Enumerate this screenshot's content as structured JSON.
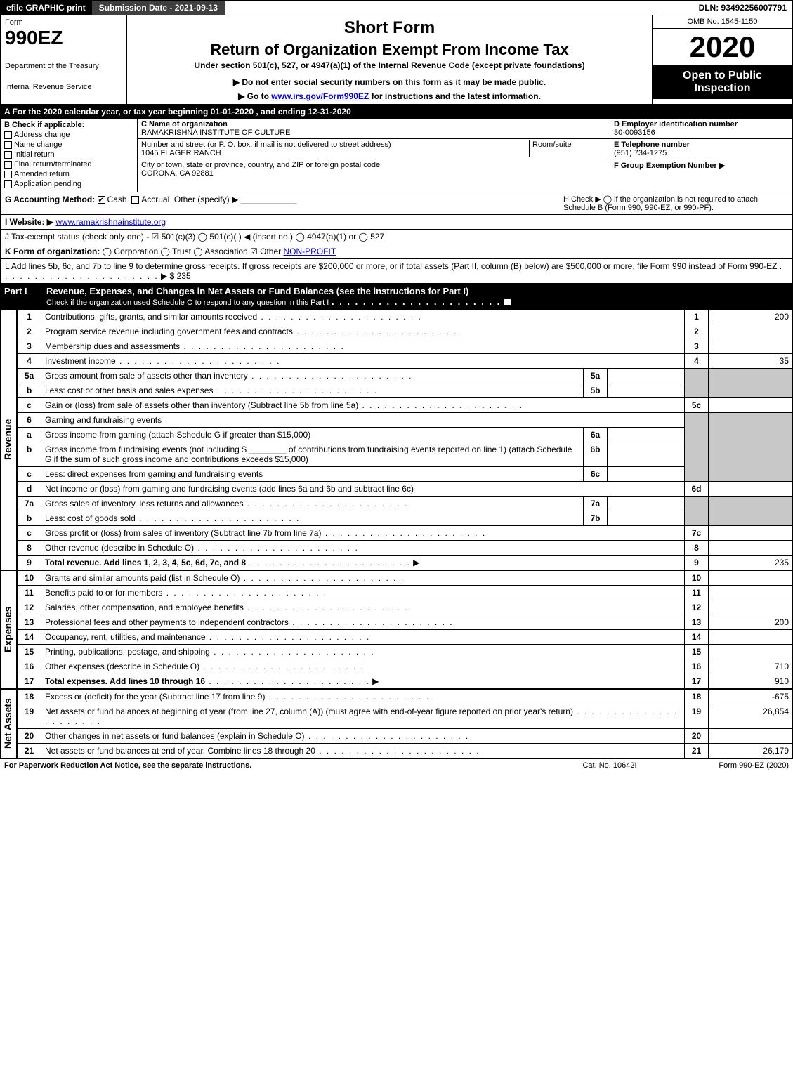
{
  "topbar": {
    "efile": "efile GRAPHIC print",
    "submission": "Submission Date - 2021-09-13",
    "dln": "DLN: 93492256007791"
  },
  "header": {
    "form_label": "Form",
    "form_num": "990EZ",
    "dept": "Department of the Treasury",
    "irs": "Internal Revenue Service",
    "short": "Short Form",
    "title": "Return of Organization Exempt From Income Tax",
    "sub": "Under section 501(c), 527, or 4947(a)(1) of the Internal Revenue Code (except private foundations)",
    "notice": "▶ Do not enter social security numbers on this form as it may be made public.",
    "go_pre": "▶ Go to ",
    "go_link": "www.irs.gov/Form990EZ",
    "go_post": " for instructions and the latest information.",
    "omb": "OMB No. 1545-1150",
    "year": "2020",
    "open": "Open to Public Inspection"
  },
  "tax_year": "A For the 2020 calendar year, or tax year beginning 01-01-2020 , and ending 12-31-2020",
  "box_b": {
    "header": "B Check if applicable:",
    "items": [
      "Address change",
      "Name change",
      "Initial return",
      "Final return/terminated",
      "Amended return",
      "Application pending"
    ]
  },
  "box_c": {
    "name_lab": "C Name of organization",
    "name": "RAMAKRISHNA INSTITUTE OF CULTURE",
    "addr_lab": "Number and street (or P. O. box, if mail is not delivered to street address)",
    "addr": "1045 FLAGER RANCH",
    "room_lab": "Room/suite",
    "city_lab": "City or town, state or province, country, and ZIP or foreign postal code",
    "city": "CORONA, CA  92881"
  },
  "box_d": {
    "ein_lab": "D Employer identification number",
    "ein": "30-0093156",
    "tel_lab": "E Telephone number",
    "tel": "(951) 734-1275",
    "grp_lab": "F Group Exemption Number  ▶"
  },
  "box_g": {
    "label": "G Accounting Method:",
    "cash": "Cash",
    "accrual": "Accrual",
    "other": "Other (specify) ▶"
  },
  "box_h": "H Check ▶ ◯ if the organization is not required to attach Schedule B (Form 990, 990-EZ, or 990-PF).",
  "box_i": {
    "label": "I Website: ▶",
    "link": "www.ramakrishnainstitute.org"
  },
  "box_j": "J Tax-exempt status (check only one) - ☑ 501(c)(3) ◯ 501(c)(  ) ◀ (insert no.) ◯ 4947(a)(1) or ◯ 527",
  "box_k": {
    "label": "K Form of organization:",
    "opts": "◯ Corporation  ◯ Trust  ◯ Association  ☑ Other ",
    "other": "NON-PROFIT"
  },
  "box_l": {
    "text": "L Add lines 5b, 6c, and 7b to line 9 to determine gross receipts. If gross receipts are $200,000 or more, or if total assets (Part II, column (B) below) are $500,000 or more, file Form 990 instead of Form 990-EZ",
    "val": "▶ $ 235"
  },
  "part1": {
    "label": "Part I",
    "title": "Revenue, Expenses, and Changes in Net Assets or Fund Balances (see the instructions for Part I)",
    "check": "Check if the organization used Schedule O to respond to any question in this Part I"
  },
  "sections": {
    "revenue": "Revenue",
    "expenses": "Expenses",
    "netassets": "Net Assets"
  },
  "lines": {
    "1": {
      "d": "Contributions, gifts, grants, and similar amounts received",
      "n": "1",
      "v": "200"
    },
    "2": {
      "d": "Program service revenue including government fees and contracts",
      "n": "2",
      "v": ""
    },
    "3": {
      "d": "Membership dues and assessments",
      "n": "3",
      "v": ""
    },
    "4": {
      "d": "Investment income",
      "n": "4",
      "v": "35"
    },
    "5a": {
      "d": "Gross amount from sale of assets other than inventory",
      "sn": "5a",
      "sv": ""
    },
    "5b": {
      "d": "Less: cost or other basis and sales expenses",
      "sn": "5b",
      "sv": ""
    },
    "5c": {
      "d": "Gain or (loss) from sale of assets other than inventory (Subtract line 5b from line 5a)",
      "n": "5c",
      "v": ""
    },
    "6": {
      "d": "Gaming and fundraising events"
    },
    "6a": {
      "d": "Gross income from gaming (attach Schedule G if greater than $15,000)",
      "sn": "6a",
      "sv": ""
    },
    "6b": {
      "d1": "Gross income from fundraising events (not including $",
      "d2": "of contributions from fundraising events reported on line 1) (attach Schedule G if the sum of such gross income and contributions exceeds $15,000)",
      "sn": "6b",
      "sv": ""
    },
    "6c": {
      "d": "Less: direct expenses from gaming and fundraising events",
      "sn": "6c",
      "sv": ""
    },
    "6d": {
      "d": "Net income or (loss) from gaming and fundraising events (add lines 6a and 6b and subtract line 6c)",
      "n": "6d",
      "v": ""
    },
    "7a": {
      "d": "Gross sales of inventory, less returns and allowances",
      "sn": "7a",
      "sv": ""
    },
    "7b": {
      "d": "Less: cost of goods sold",
      "sn": "7b",
      "sv": ""
    },
    "7c": {
      "d": "Gross profit or (loss) from sales of inventory (Subtract line 7b from line 7a)",
      "n": "7c",
      "v": ""
    },
    "8": {
      "d": "Other revenue (describe in Schedule O)",
      "n": "8",
      "v": ""
    },
    "9": {
      "d": "Total revenue. Add lines 1, 2, 3, 4, 5c, 6d, 7c, and 8",
      "n": "9",
      "v": "235",
      "bold": true,
      "arrow": true
    },
    "10": {
      "d": "Grants and similar amounts paid (list in Schedule O)",
      "n": "10",
      "v": ""
    },
    "11": {
      "d": "Benefits paid to or for members",
      "n": "11",
      "v": ""
    },
    "12": {
      "d": "Salaries, other compensation, and employee benefits",
      "n": "12",
      "v": ""
    },
    "13": {
      "d": "Professional fees and other payments to independent contractors",
      "n": "13",
      "v": "200"
    },
    "14": {
      "d": "Occupancy, rent, utilities, and maintenance",
      "n": "14",
      "v": ""
    },
    "15": {
      "d": "Printing, publications, postage, and shipping",
      "n": "15",
      "v": ""
    },
    "16": {
      "d": "Other expenses (describe in Schedule O)",
      "n": "16",
      "v": "710"
    },
    "17": {
      "d": "Total expenses. Add lines 10 through 16",
      "n": "17",
      "v": "910",
      "bold": true,
      "arrow": true
    },
    "18": {
      "d": "Excess or (deficit) for the year (Subtract line 17 from line 9)",
      "n": "18",
      "v": "-675"
    },
    "19": {
      "d": "Net assets or fund balances at beginning of year (from line 27, column (A)) (must agree with end-of-year figure reported on prior year's return)",
      "n": "19",
      "v": "26,854"
    },
    "20": {
      "d": "Other changes in net assets or fund balances (explain in Schedule O)",
      "n": "20",
      "v": ""
    },
    "21": {
      "d": "Net assets or fund balances at end of year. Combine lines 18 through 20",
      "n": "21",
      "v": "26,179"
    }
  },
  "footer": {
    "l": "For Paperwork Reduction Act Notice, see the separate instructions.",
    "m": "Cat. No. 10642I",
    "r": "Form 990-EZ (2020)"
  },
  "colors": {
    "black": "#000000",
    "grey_cell": "#c8c8c8",
    "link": "#0000ee",
    "dark_btn": "#3f3f3f"
  }
}
